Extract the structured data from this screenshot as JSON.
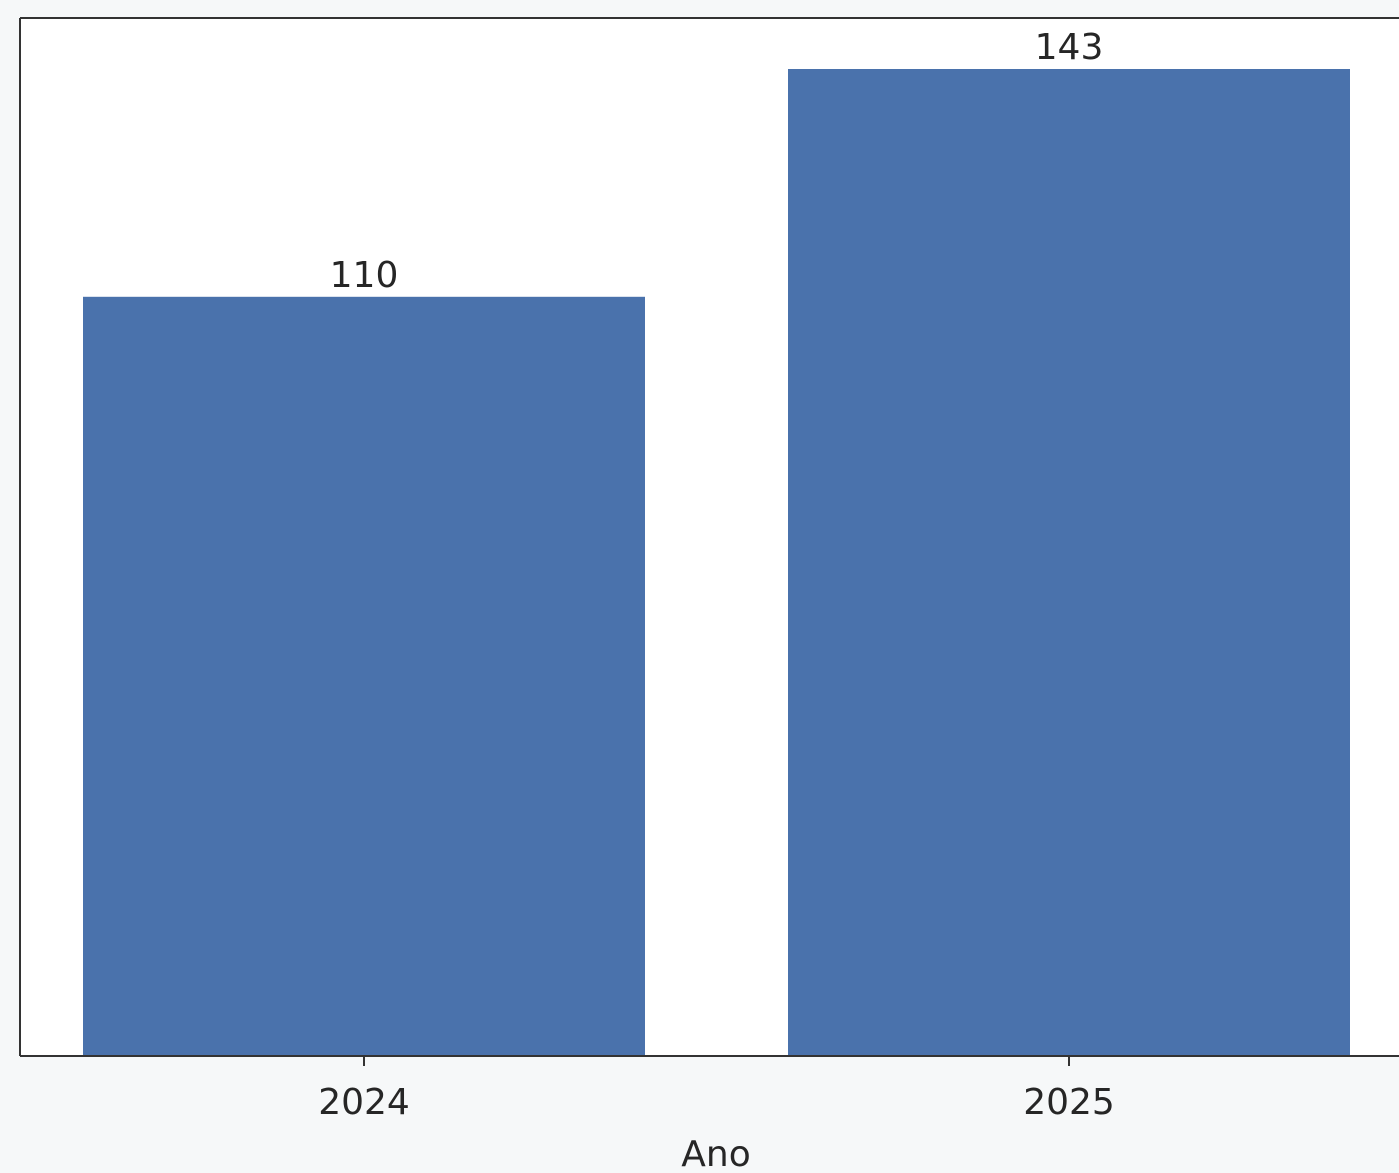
{
  "chart_data": {
    "type": "bar",
    "xlabel": "Ano",
    "ylabel": "",
    "categories": [
      "2024",
      "2025"
    ],
    "values": [
      110,
      143
    ],
    "value_labels": [
      "110",
      "143"
    ],
    "ylim": [
      0,
      150
    ],
    "grid": false,
    "colors": {
      "bar": "#4a72ac",
      "axis": "#333333",
      "background": "#f6f8f9",
      "plot_background": "#ffffff"
    }
  }
}
